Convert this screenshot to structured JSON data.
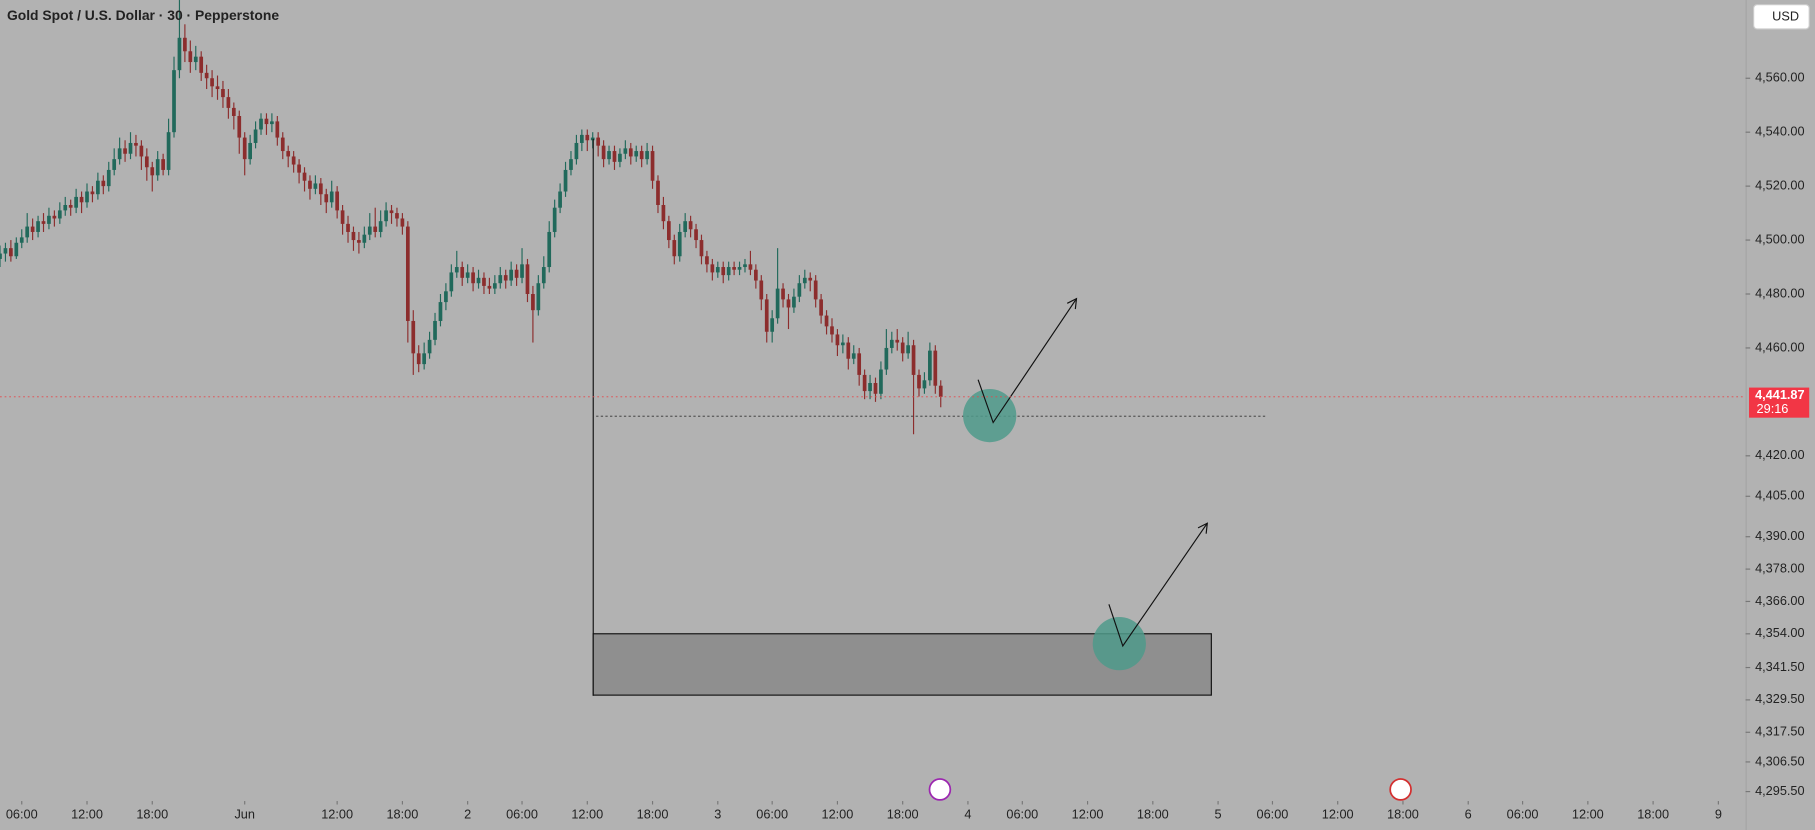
{
  "chart_data": {
    "type": "candlestick",
    "title": "Gold Spot / U.S. Dollar · 30 · Pepperstone",
    "currency": "USD",
    "countdown": "29:16",
    "last_price": {
      "value": 4441.87,
      "label": "4,441.87"
    },
    "up_color": "#21695b",
    "down_color": "#8c2d2d",
    "xlim": [
      0,
      321
    ],
    "ylim": [
      4292,
      4589
    ],
    "xticks": [
      {
        "value": 4,
        "label": "06:00"
      },
      {
        "value": 16,
        "label": "12:00"
      },
      {
        "value": 28,
        "label": "18:00"
      },
      {
        "value": 45,
        "label": "Jun"
      },
      {
        "value": 62,
        "label": "12:00"
      },
      {
        "value": 74,
        "label": "18:00"
      },
      {
        "value": 86,
        "label": "2"
      },
      {
        "value": 96,
        "label": "06:00"
      },
      {
        "value": 108,
        "label": "12:00"
      },
      {
        "value": 120,
        "label": "18:00"
      },
      {
        "value": 132,
        "label": "3"
      },
      {
        "value": 142,
        "label": "06:00"
      },
      {
        "value": 154,
        "label": "12:00"
      },
      {
        "value": 166,
        "label": "18:00"
      },
      {
        "value": 178,
        "label": "4"
      },
      {
        "value": 188,
        "label": "06:00"
      },
      {
        "value": 200,
        "label": "12:00"
      },
      {
        "value": 212,
        "label": "18:00"
      },
      {
        "value": 224,
        "label": "5"
      },
      {
        "value": 234,
        "label": "06:00"
      },
      {
        "value": 246,
        "label": "12:00"
      },
      {
        "value": 258,
        "label": "18:00"
      },
      {
        "value": 270,
        "label": "6"
      },
      {
        "value": 280,
        "label": "06:00"
      },
      {
        "value": 292,
        "label": "12:00"
      },
      {
        "value": 304,
        "label": "18:00"
      },
      {
        "value": 316,
        "label": "9"
      }
    ],
    "yticks": [
      {
        "value": 4560,
        "label": "4,560.00"
      },
      {
        "value": 4540,
        "label": "4,540.00"
      },
      {
        "value": 4520,
        "label": "4,520.00"
      },
      {
        "value": 4500,
        "label": "4,500.00"
      },
      {
        "value": 4480,
        "label": "4,480.00"
      },
      {
        "value": 4460,
        "label": "4,460.00"
      },
      {
        "value": 4420,
        "label": "4,420.00"
      },
      {
        "value": 4405,
        "label": "4,405.00"
      },
      {
        "value": 4390,
        "label": "4,390.00"
      },
      {
        "value": 4378,
        "label": "4,378.00"
      },
      {
        "value": 4366,
        "label": "4,366.00"
      },
      {
        "value": 4354,
        "label": "4,354.00"
      },
      {
        "value": 4341.5,
        "label": "4,341.50"
      },
      {
        "value": 4329.5,
        "label": "4,329.50"
      },
      {
        "value": 4317.5,
        "label": "4,317.50"
      },
      {
        "value": 4306.5,
        "label": "4,306.50"
      },
      {
        "value": 4295.5,
        "label": "4,295.50"
      }
    ],
    "ohlc": [
      [
        4493,
        4498,
        4490,
        4495
      ],
      [
        4495,
        4499,
        4492,
        4497
      ],
      [
        4497,
        4500,
        4492,
        4494
      ],
      [
        4494,
        4501,
        4493,
        4499
      ],
      [
        4499,
        4504,
        4497,
        4501
      ],
      [
        4501,
        4510,
        4499,
        4505
      ],
      [
        4505,
        4508,
        4500,
        4503
      ],
      [
        4503,
        4509,
        4501,
        4507
      ],
      [
        4507,
        4510,
        4503,
        4506
      ],
      [
        4506,
        4512,
        4504,
        4509
      ],
      [
        4509,
        4511,
        4505,
        4508
      ],
      [
        4508,
        4514,
        4506,
        4511
      ],
      [
        4511,
        4516,
        4509,
        4513
      ],
      [
        4513,
        4515,
        4509,
        4512
      ],
      [
        4512,
        4519,
        4510,
        4516
      ],
      [
        4516,
        4518,
        4510,
        4514
      ],
      [
        4514,
        4521,
        4512,
        4518
      ],
      [
        4518,
        4520,
        4514,
        4517
      ],
      [
        4517,
        4525,
        4515,
        4522
      ],
      [
        4522,
        4524,
        4517,
        4520
      ],
      [
        4520,
        4529,
        4518,
        4526
      ],
      [
        4526,
        4534,
        4524,
        4530
      ],
      [
        4530,
        4538,
        4528,
        4534
      ],
      [
        4534,
        4537,
        4529,
        4532
      ],
      [
        4532,
        4540,
        4530,
        4536
      ],
      [
        4536,
        4539,
        4531,
        4535
      ],
      [
        4535,
        4537,
        4526,
        4531
      ],
      [
        4531,
        4534,
        4522,
        4527
      ],
      [
        4527,
        4529,
        4518,
        4524
      ],
      [
        4524,
        4533,
        4522,
        4530
      ],
      [
        4530,
        4532,
        4524,
        4526
      ],
      [
        4526,
        4545,
        4524,
        4540
      ],
      [
        4540,
        4568,
        4538,
        4563
      ],
      [
        4563,
        4589,
        4560,
        4575
      ],
      [
        4575,
        4580,
        4566,
        4570
      ],
      [
        4570,
        4574,
        4562,
        4566
      ],
      [
        4566,
        4572,
        4563,
        4568
      ],
      [
        4568,
        4570,
        4559,
        4562
      ],
      [
        4562,
        4565,
        4556,
        4560
      ],
      [
        4560,
        4563,
        4553,
        4557
      ],
      [
        4557,
        4561,
        4552,
        4556
      ],
      [
        4556,
        4559,
        4549,
        4553
      ],
      [
        4553,
        4556,
        4545,
        4549
      ],
      [
        4549,
        4551,
        4541,
        4546
      ],
      [
        4546,
        4548,
        4532,
        4538
      ],
      [
        4538,
        4540,
        4524,
        4530
      ],
      [
        4530,
        4539,
        4528,
        4536
      ],
      [
        4536,
        4544,
        4534,
        4541
      ],
      [
        4541,
        4547,
        4539,
        4545
      ],
      [
        4545,
        4547,
        4539,
        4543
      ],
      [
        4543,
        4547,
        4540,
        4544
      ],
      [
        4544,
        4546,
        4535,
        4538
      ],
      [
        4538,
        4540,
        4530,
        4533
      ],
      [
        4533,
        4535,
        4527,
        4531
      ],
      [
        4531,
        4533,
        4525,
        4528
      ],
      [
        4528,
        4530,
        4521,
        4525
      ],
      [
        4525,
        4527,
        4518,
        4522
      ],
      [
        4522,
        4524,
        4515,
        4519
      ],
      [
        4519,
        4524,
        4517,
        4521
      ],
      [
        4521,
        4523,
        4513,
        4517
      ],
      [
        4517,
        4519,
        4510,
        4514
      ],
      [
        4514,
        4522,
        4512,
        4518
      ],
      [
        4518,
        4520,
        4508,
        4511
      ],
      [
        4511,
        4513,
        4502,
        4506
      ],
      [
        4506,
        4509,
        4499,
        4503
      ],
      [
        4503,
        4505,
        4496,
        4500
      ],
      [
        4500,
        4503,
        4495,
        4499
      ],
      [
        4499,
        4505,
        4497,
        4502
      ],
      [
        4502,
        4510,
        4500,
        4505
      ],
      [
        4505,
        4512,
        4501,
        4503
      ],
      [
        4503,
        4511,
        4501,
        4507
      ],
      [
        4507,
        4514,
        4505,
        4511
      ],
      [
        4511,
        4513,
        4506,
        4510
      ],
      [
        4510,
        4512,
        4505,
        4508
      ],
      [
        4508,
        4510,
        4502,
        4505
      ],
      [
        4505,
        4507,
        4462,
        4470
      ],
      [
        4470,
        4474,
        4450,
        4458
      ],
      [
        4458,
        4461,
        4451,
        4454
      ],
      [
        4454,
        4462,
        4452,
        4458
      ],
      [
        4458,
        4466,
        4456,
        4463
      ],
      [
        4463,
        4473,
        4461,
        4470
      ],
      [
        4470,
        4480,
        4468,
        4477
      ],
      [
        4477,
        4484,
        4474,
        4481
      ],
      [
        4481,
        4491,
        4479,
        4488
      ],
      [
        4488,
        4496,
        4486,
        4490
      ],
      [
        4490,
        4492,
        4483,
        4486
      ],
      [
        4486,
        4491,
        4484,
        4488
      ],
      [
        4488,
        4490,
        4481,
        4484
      ],
      [
        4484,
        4489,
        4482,
        4486
      ],
      [
        4486,
        4488,
        4480,
        4483
      ],
      [
        4483,
        4486,
        4480,
        4482
      ],
      [
        4482,
        4487,
        4480,
        4484
      ],
      [
        4484,
        4490,
        4482,
        4487
      ],
      [
        4487,
        4489,
        4482,
        4485
      ],
      [
        4485,
        4492,
        4483,
        4489
      ],
      [
        4489,
        4491,
        4483,
        4486
      ],
      [
        4486,
        4497,
        4484,
        4491
      ],
      [
        4491,
        4493,
        4477,
        4480
      ],
      [
        4480,
        4483,
        4462,
        4474
      ],
      [
        4474,
        4487,
        4472,
        4484
      ],
      [
        4484,
        4494,
        4482,
        4490
      ],
      [
        4490,
        4507,
        4488,
        4503
      ],
      [
        4503,
        4515,
        4501,
        4512
      ],
      [
        4512,
        4521,
        4510,
        4518
      ],
      [
        4518,
        4529,
        4516,
        4526
      ],
      [
        4526,
        4533,
        4524,
        4530
      ],
      [
        4530,
        4539,
        4528,
        4536
      ],
      [
        4536,
        4541,
        4533,
        4539
      ],
      [
        4539,
        4541,
        4533,
        4537
      ],
      [
        4537,
        4540,
        4534,
        4538
      ],
      [
        4538,
        4540,
        4531,
        4535
      ],
      [
        4535,
        4537,
        4527,
        4530
      ],
      [
        4530,
        4535,
        4528,
        4533
      ],
      [
        4533,
        4535,
        4526,
        4529
      ],
      [
        4529,
        4534,
        4527,
        4532
      ],
      [
        4532,
        4537,
        4530,
        4534
      ],
      [
        4534,
        4536,
        4528,
        4531
      ],
      [
        4531,
        4535,
        4529,
        4533
      ],
      [
        4533,
        4535,
        4527,
        4530
      ],
      [
        4530,
        4536,
        4528,
        4533
      ],
      [
        4533,
        4535,
        4519,
        4522
      ],
      [
        4522,
        4524,
        4510,
        4513
      ],
      [
        4513,
        4516,
        4504,
        4507
      ],
      [
        4507,
        4509,
        4497,
        4500
      ],
      [
        4500,
        4502,
        4491,
        4494
      ],
      [
        4494,
        4506,
        4492,
        4503
      ],
      [
        4503,
        4510,
        4501,
        4507
      ],
      [
        4507,
        4509,
        4501,
        4504
      ],
      [
        4504,
        4506,
        4497,
        4500
      ],
      [
        4500,
        4502,
        4491,
        4494
      ],
      [
        4494,
        4496,
        4488,
        4491
      ],
      [
        4491,
        4493,
        4485,
        4488
      ],
      [
        4488,
        4492,
        4486,
        4490
      ],
      [
        4490,
        4492,
        4484,
        4487
      ],
      [
        4487,
        4492,
        4485,
        4490
      ],
      [
        4490,
        4492,
        4487,
        4489
      ],
      [
        4489,
        4492,
        4487,
        4490
      ],
      [
        4490,
        4493,
        4488,
        4491
      ],
      [
        4491,
        4496,
        4487,
        4489
      ],
      [
        4489,
        4491,
        4482,
        4485
      ],
      [
        4485,
        4487,
        4474,
        4478
      ],
      [
        4478,
        4480,
        4462,
        4466
      ],
      [
        4466,
        4474,
        4462,
        4471
      ],
      [
        4471,
        4497,
        4469,
        4482
      ],
      [
        4482,
        4484,
        4475,
        4478
      ],
      [
        4478,
        4480,
        4467,
        4475
      ],
      [
        4475,
        4482,
        4473,
        4479
      ],
      [
        4479,
        4487,
        4477,
        4484
      ],
      [
        4484,
        4489,
        4482,
        4486
      ],
      [
        4486,
        4488,
        4481,
        4485
      ],
      [
        4485,
        4487,
        4475,
        4478
      ],
      [
        4478,
        4480,
        4469,
        4472
      ],
      [
        4472,
        4474,
        4465,
        4468
      ],
      [
        4468,
        4471,
        4462,
        4465
      ],
      [
        4465,
        4467,
        4457,
        4461
      ],
      [
        4461,
        4465,
        4458,
        4462
      ],
      [
        4462,
        4464,
        4452,
        4456
      ],
      [
        4456,
        4461,
        4454,
        4458
      ],
      [
        4458,
        4460,
        4446,
        4450
      ],
      [
        4450,
        4452,
        4441,
        4444
      ],
      [
        4444,
        4450,
        4441,
        4447
      ],
      [
        4447,
        4449,
        4440,
        4443
      ],
      [
        4443,
        4455,
        4441,
        4452
      ],
      [
        4452,
        4467,
        4450,
        4460
      ],
      [
        4460,
        4466,
        4458,
        4463
      ],
      [
        4463,
        4467,
        4459,
        4462
      ],
      [
        4462,
        4464,
        4455,
        4458
      ],
      [
        4458,
        4466,
        4456,
        4461
      ],
      [
        4461,
        4463,
        4428,
        4450
      ],
      [
        4450,
        4452,
        4442,
        4445
      ],
      [
        4445,
        4451,
        4443,
        4448
      ],
      [
        4448,
        4462,
        4446,
        4459
      ],
      [
        4459,
        4461,
        4443,
        4446
      ],
      [
        4446,
        4448,
        4438,
        4441.87
      ]
    ]
  }
}
